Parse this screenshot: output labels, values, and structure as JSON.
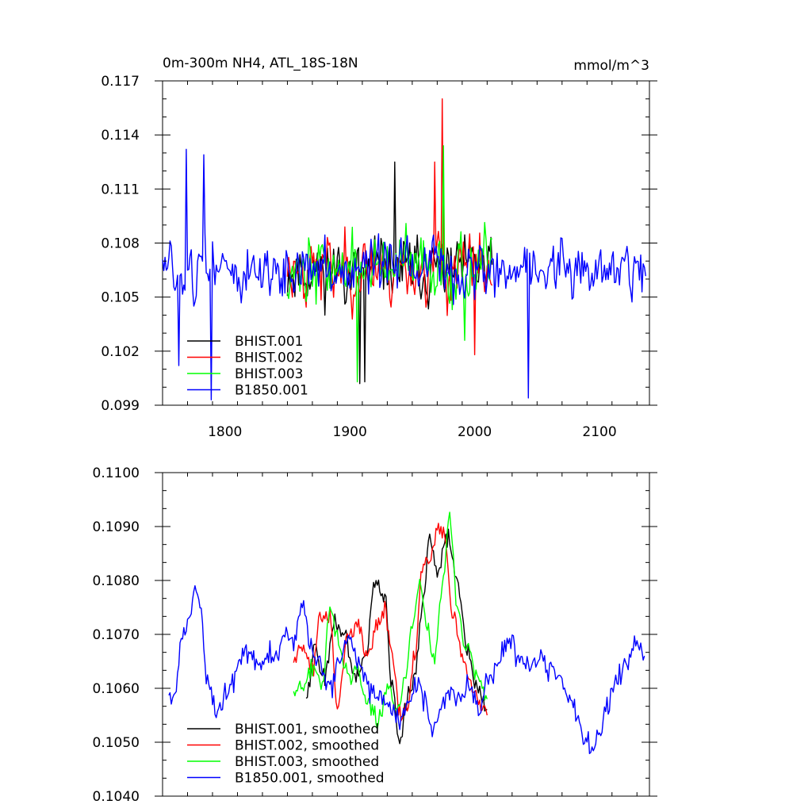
{
  "chart_data": [
    {
      "type": "line",
      "title": "0m-300m NH4, ATL_18S-18N",
      "units": "mmol/m^3",
      "xlim": [
        1750,
        2140
      ],
      "ylim": [
        0.099,
        0.117
      ],
      "x_ticks": [
        1800,
        1900,
        2000,
        2100
      ],
      "x_tick_labels": [
        "1800",
        "1900",
        "2000",
        "2100"
      ],
      "y_ticks": [
        0.099,
        0.102,
        0.105,
        0.108,
        0.111,
        0.114,
        0.117
      ],
      "y_tick_labels": [
        "0.099",
        "0.102",
        "0.105",
        "0.108",
        "0.111",
        "0.114",
        "0.117"
      ],
      "legend_position": "bottom-left",
      "series": [
        {
          "name": "BHIST.001",
          "color": "#000000",
          "start": 1850,
          "end": 2014,
          "mean": 0.1065,
          "amp": 0.0016,
          "seed": 11,
          "peaks": [
            [
              1908,
              0.1002
            ],
            [
              1912,
              0.1003
            ],
            [
              1936,
              0.1125
            ]
          ]
        },
        {
          "name": "BHIST.002",
          "color": "#ff0000",
          "start": 1850,
          "end": 2014,
          "mean": 0.1066,
          "amp": 0.0018,
          "seed": 23,
          "peaks": [
            [
              1974,
              0.116
            ],
            [
              1968,
              0.1125
            ],
            [
              2000,
              0.1018
            ]
          ]
        },
        {
          "name": "BHIST.003",
          "color": "#00ff00",
          "start": 1850,
          "end": 2014,
          "mean": 0.1066,
          "amp": 0.0017,
          "seed": 37,
          "peaks": [
            [
              1975,
              0.1134
            ],
            [
              1906,
              0.1003
            ],
            [
              1992,
              0.1026
            ]
          ]
        },
        {
          "name": "B1850.001",
          "color": "#0000ff",
          "start": 1750,
          "end": 2137,
          "mean": 0.1065,
          "amp": 0.0015,
          "seed": 51,
          "peaks": [
            [
              1769,
              0.1132
            ],
            [
              1783,
              0.1129
            ],
            [
              1789,
              0.0993
            ],
            [
              2043,
              0.0994
            ],
            [
              1763,
              0.1012
            ]
          ]
        }
      ]
    },
    {
      "type": "line",
      "xlim": [
        1750,
        2140
      ],
      "ylim": [
        0.104,
        0.11
      ],
      "x_ticks": [
        1800,
        1900,
        2000,
        2100
      ],
      "y_ticks": [
        0.104,
        0.105,
        0.106,
        0.107,
        0.108,
        0.109,
        0.11
      ],
      "y_tick_labels": [
        "0.1040",
        "0.1050",
        "0.1060",
        "0.1070",
        "0.1080",
        "0.1090",
        "0.1100"
      ],
      "legend_position": "bottom-left",
      "series": [
        {
          "name": "BHIST.001, smoothed",
          "color": "#000000",
          "jitter": 0.00018,
          "seed": 101,
          "points": [
            [
              1865,
              0.1058
            ],
            [
              1872,
              0.1068
            ],
            [
              1880,
              0.1062
            ],
            [
              1888,
              0.1072
            ],
            [
              1896,
              0.107
            ],
            [
              1904,
              0.1062
            ],
            [
              1912,
              0.1065
            ],
            [
              1920,
              0.108
            ],
            [
              1928,
              0.1077
            ],
            [
              1934,
              0.106
            ],
            [
              1940,
              0.105
            ],
            [
              1946,
              0.1058
            ],
            [
              1952,
              0.1062
            ],
            [
              1958,
              0.1075
            ],
            [
              1964,
              0.1088
            ],
            [
              1970,
              0.1082
            ],
            [
              1978,
              0.1088
            ],
            [
              1986,
              0.108
            ],
            [
              1994,
              0.1068
            ],
            [
              2002,
              0.106
            ],
            [
              2010,
              0.1056
            ]
          ]
        },
        {
          "name": "BHIST.002, smoothed",
          "color": "#ff0000",
          "jitter": 0.00018,
          "seed": 202,
          "points": [
            [
              1855,
              0.1066
            ],
            [
              1862,
              0.1068
            ],
            [
              1870,
              0.1064
            ],
            [
              1876,
              0.1073
            ],
            [
              1884,
              0.1074
            ],
            [
              1890,
              0.1057
            ],
            [
              1898,
              0.107
            ],
            [
              1906,
              0.1072
            ],
            [
              1914,
              0.1066
            ],
            [
              1922,
              0.1072
            ],
            [
              1928,
              0.1075
            ],
            [
              1934,
              0.1066
            ],
            [
              1940,
              0.1055
            ],
            [
              1946,
              0.1056
            ],
            [
              1952,
              0.1066
            ],
            [
              1958,
              0.1082
            ],
            [
              1964,
              0.1084
            ],
            [
              1970,
              0.109
            ],
            [
              1976,
              0.1088
            ],
            [
              1982,
              0.1075
            ],
            [
              1990,
              0.1066
            ],
            [
              1998,
              0.106
            ],
            [
              2004,
              0.1057
            ],
            [
              2010,
              0.1055
            ]
          ]
        },
        {
          "name": "BHIST.003, smoothed",
          "color": "#00ff00",
          "jitter": 0.00018,
          "seed": 303,
          "points": [
            [
              1855,
              0.1059
            ],
            [
              1862,
              0.1061
            ],
            [
              1870,
              0.1064
            ],
            [
              1878,
              0.106
            ],
            [
              1884,
              0.1075
            ],
            [
              1892,
              0.1068
            ],
            [
              1898,
              0.1062
            ],
            [
              1906,
              0.1063
            ],
            [
              1914,
              0.1058
            ],
            [
              1922,
              0.1054
            ],
            [
              1930,
              0.106
            ],
            [
              1938,
              0.1056
            ],
            [
              1944,
              0.1062
            ],
            [
              1950,
              0.1072
            ],
            [
              1956,
              0.108
            ],
            [
              1962,
              0.1071
            ],
            [
              1968,
              0.1065
            ],
            [
              1974,
              0.108
            ],
            [
              1980,
              0.1092
            ],
            [
              1986,
              0.1075
            ],
            [
              1994,
              0.1067
            ],
            [
              2002,
              0.1062
            ],
            [
              2010,
              0.1058
            ]
          ]
        },
        {
          "name": "B1850.001, smoothed",
          "color": "#0000ff",
          "jitter": 0.00022,
          "seed": 404,
          "points": [
            [
              1755,
              0.1058
            ],
            [
              1760,
              0.1059
            ],
            [
              1766,
              0.107
            ],
            [
              1772,
              0.1073
            ],
            [
              1776,
              0.1079
            ],
            [
              1781,
              0.1074
            ],
            [
              1786,
              0.1061
            ],
            [
              1792,
              0.1056
            ],
            [
              1798,
              0.1058
            ],
            [
              1806,
              0.106
            ],
            [
              1812,
              0.1066
            ],
            [
              1820,
              0.1066
            ],
            [
              1828,
              0.1064
            ],
            [
              1836,
              0.1066
            ],
            [
              1842,
              0.1067
            ],
            [
              1848,
              0.107
            ],
            [
              1856,
              0.1069
            ],
            [
              1862,
              0.1076
            ],
            [
              1868,
              0.1068
            ],
            [
              1876,
              0.1064
            ],
            [
              1884,
              0.106
            ],
            [
              1892,
              0.1066
            ],
            [
              1900,
              0.107
            ],
            [
              1908,
              0.1064
            ],
            [
              1916,
              0.106
            ],
            [
              1924,
              0.1058
            ],
            [
              1932,
              0.1056
            ],
            [
              1940,
              0.1054
            ],
            [
              1948,
              0.1058
            ],
            [
              1954,
              0.1062
            ],
            [
              1960,
              0.1058
            ],
            [
              1966,
              0.1052
            ],
            [
              1974,
              0.1056
            ],
            [
              1980,
              0.106
            ],
            [
              1988,
              0.1058
            ],
            [
              1996,
              0.106
            ],
            [
              2004,
              0.1056
            ],
            [
              2012,
              0.1062
            ],
            [
              2020,
              0.1066
            ],
            [
              2028,
              0.1068
            ],
            [
              2036,
              0.1066
            ],
            [
              2044,
              0.1064
            ],
            [
              2052,
              0.1066
            ],
            [
              2060,
              0.1064
            ],
            [
              2068,
              0.1062
            ],
            [
              2076,
              0.1058
            ],
            [
              2082,
              0.1055
            ],
            [
              2088,
              0.105
            ],
            [
              2094,
              0.1049
            ],
            [
              2100,
              0.1052
            ],
            [
              2106,
              0.1056
            ],
            [
              2112,
              0.106
            ],
            [
              2118,
              0.1064
            ],
            [
              2124,
              0.1066
            ],
            [
              2130,
              0.1068
            ],
            [
              2136,
              0.1066
            ]
          ]
        }
      ]
    }
  ]
}
